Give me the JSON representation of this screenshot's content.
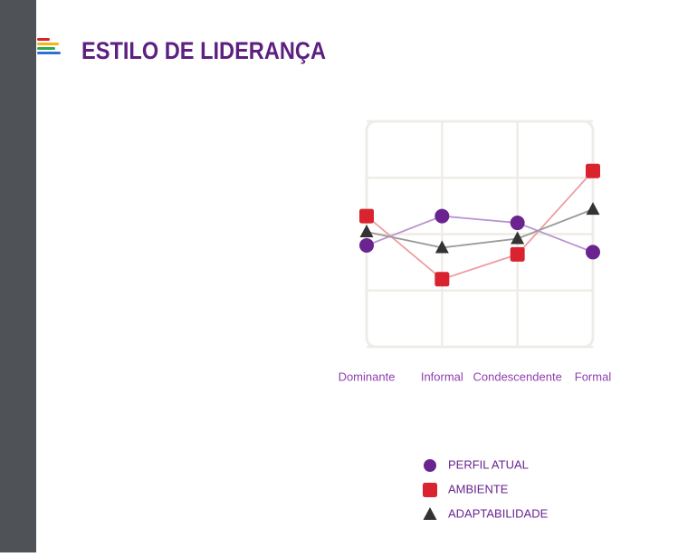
{
  "header": {
    "title": "ESTILO DE LIDERANÇA"
  },
  "chart_data": {
    "type": "line",
    "categories": [
      "Dominante",
      "Informal",
      "Condescendente",
      "Formal"
    ],
    "series": [
      {
        "name": "PERFIL ATUAL",
        "color": "#6a2490",
        "line_color": "#b995cf",
        "marker": "circle",
        "values": [
          45,
          58,
          55,
          42
        ]
      },
      {
        "name": "AMBIENTE",
        "color": "#d9232e",
        "line_color": "#ee9da1",
        "marker": "square",
        "values": [
          58,
          30,
          41,
          78
        ]
      },
      {
        "name": "ADAPTABILIDADE",
        "color": "#333333",
        "line_color": "#9a9a9a",
        "marker": "triangle",
        "values": [
          51,
          44,
          48,
          61
        ]
      }
    ],
    "ylim": [
      0,
      100
    ],
    "yticks": [
      0,
      25,
      50,
      75,
      100
    ],
    "grid": true
  }
}
